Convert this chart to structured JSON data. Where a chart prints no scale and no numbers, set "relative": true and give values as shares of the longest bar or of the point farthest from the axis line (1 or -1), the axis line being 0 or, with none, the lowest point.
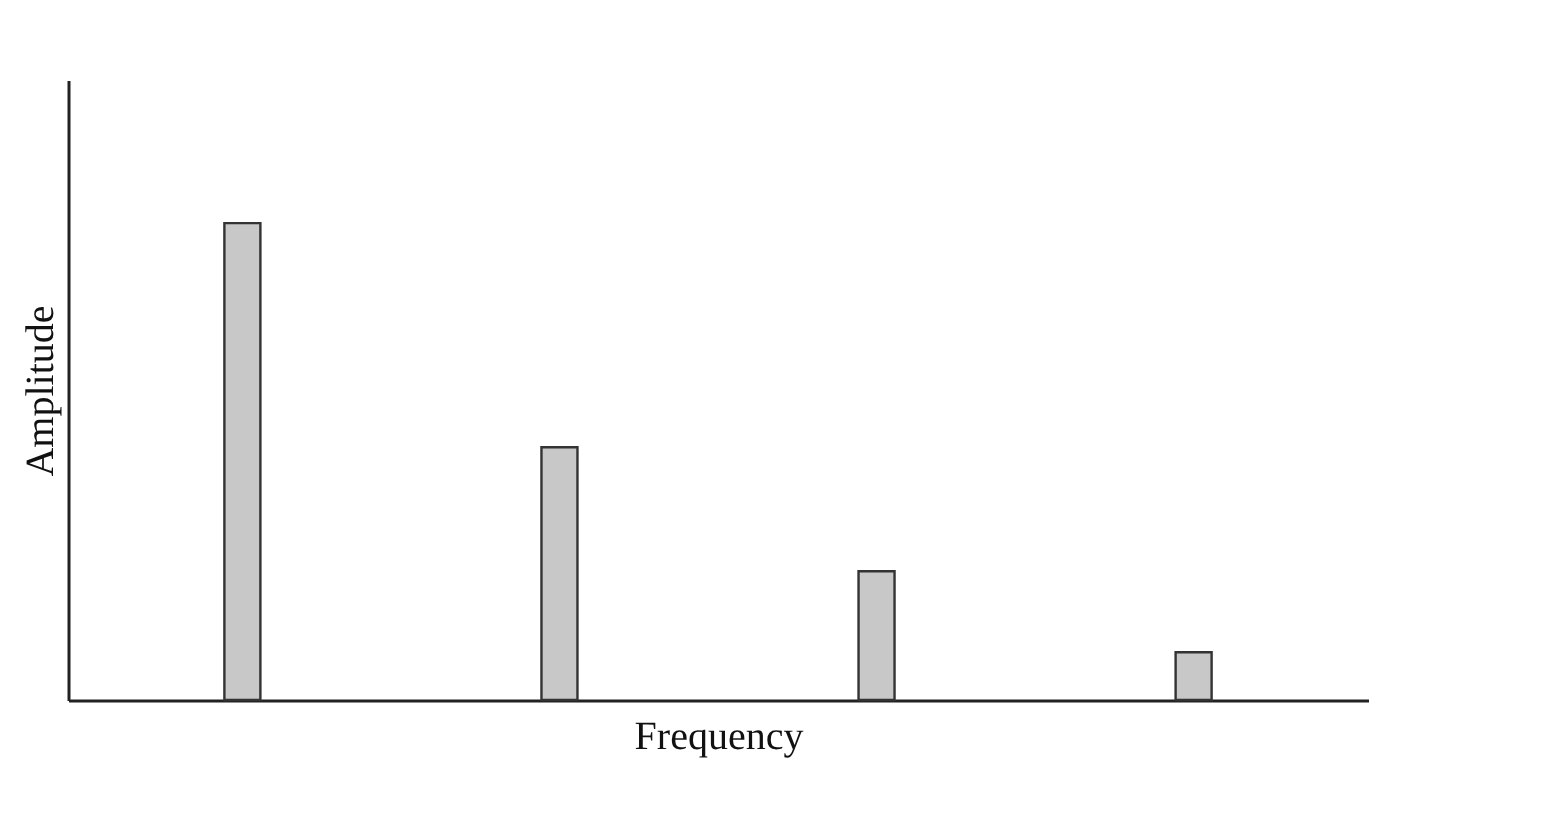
{
  "chart_data": {
    "type": "bar",
    "relative": true,
    "xlabel": "Frequency",
    "ylabel": "Amplitude",
    "categories": [
      null,
      null,
      null,
      null
    ],
    "values": [
      1,
      0.53,
      0.27,
      0.1
    ],
    "color": "#c8c8c8",
    "grid": false
  }
}
